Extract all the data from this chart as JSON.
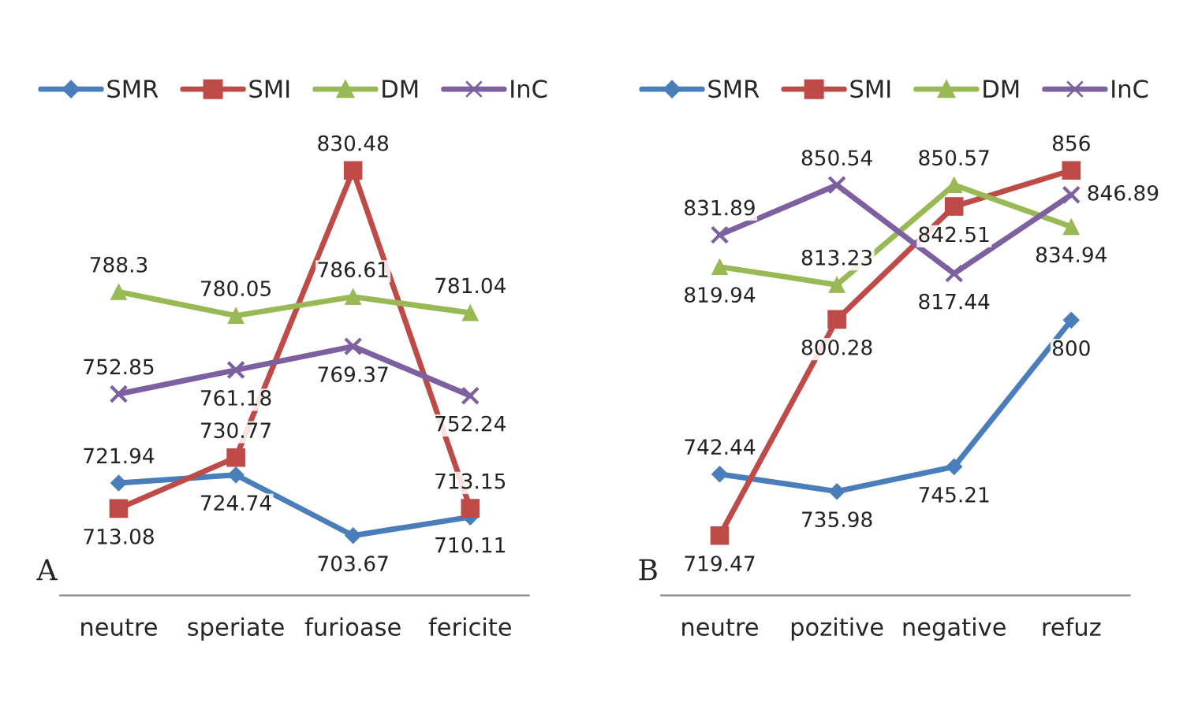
{
  "chart_data": [
    {
      "type": "line",
      "categories": [
        "neutre",
        "speriate",
        "furioase",
        "fericite"
      ],
      "data_labels": true,
      "legend": "top",
      "tick_labels": "x",
      "grid": false,
      "annotations": [
        "A"
      ],
      "series": [
        {
          "name": "SMR",
          "color": "#4a7ebb",
          "marker": "diamond",
          "values": [
            721.94,
            724.74,
            703.67,
            710.11
          ]
        },
        {
          "name": "SMI",
          "color": "#be4b48",
          "marker": "square",
          "values": [
            713.08,
            730.77,
            830.48,
            713.15
          ]
        },
        {
          "name": "DM",
          "color": "#98b954",
          "marker": "triangle",
          "values": [
            788.3,
            780.05,
            786.61,
            781.04
          ]
        },
        {
          "name": "InC",
          "color": "#7d60a0",
          "marker": "cross",
          "values": [
            752.85,
            761.18,
            769.37,
            752.24
          ]
        }
      ]
    },
    {
      "type": "line",
      "categories": [
        "neutre",
        "pozitive",
        "negative",
        "refuz"
      ],
      "data_labels": true,
      "legend": "top",
      "tick_labels": "x",
      "grid": false,
      "annotations": [
        "B"
      ],
      "series": [
        {
          "name": "SMR",
          "color": "#4a7ebb",
          "marker": "diamond",
          "values": [
            742.44,
            735.98,
            745.21,
            800
          ]
        },
        {
          "name": "SMI",
          "color": "#be4b48",
          "marker": "square",
          "values": [
            719.47,
            800.28,
            842.51,
            856
          ]
        },
        {
          "name": "DM",
          "color": "#98b954",
          "marker": "triangle",
          "values": [
            819.94,
            813.23,
            850.57,
            834.94
          ]
        },
        {
          "name": "InC",
          "color": "#7d60a0",
          "marker": "cross",
          "values": [
            831.89,
            850.54,
            817.44,
            846.89
          ]
        }
      ]
    }
  ]
}
